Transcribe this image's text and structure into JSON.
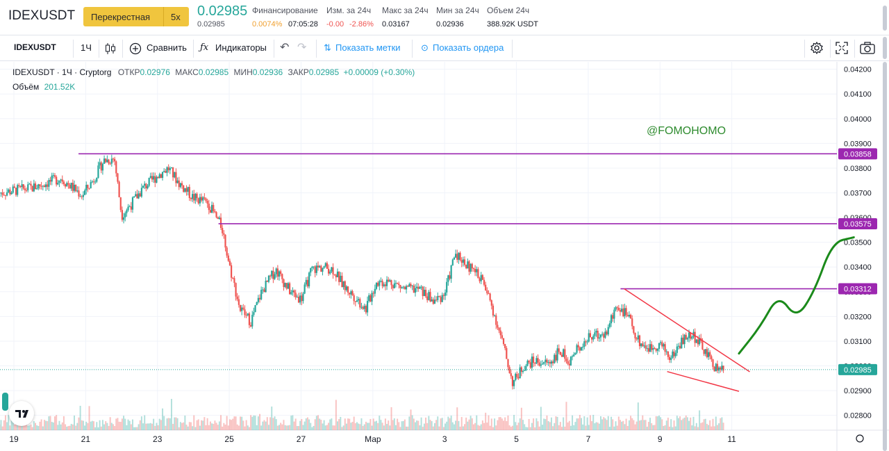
{
  "ticker": {
    "symbol": "IDEXUSDT",
    "margin_mode": "Перекрестная",
    "leverage": "5x",
    "last_price": "0.02985",
    "last_price_sub": "0.02985",
    "stats": [
      {
        "label": "Финансирование",
        "values": [
          "0.0074%",
          "07:05:28"
        ]
      },
      {
        "label": "Изм. за 24ч",
        "values": [
          "-0.00",
          "-2.86%"
        ]
      },
      {
        "label": "Макс за 24ч",
        "values": [
          "0.03167"
        ]
      },
      {
        "label": "Мин за 24ч",
        "values": [
          "0.02936"
        ]
      },
      {
        "label": "Объем 24ч",
        "values": [
          "388.92K USDT"
        ]
      }
    ]
  },
  "toolbar": {
    "symbol": "IDEXUSDT",
    "interval": "1Ч",
    "compare": "Сравнить",
    "indicators": "Индикаторы",
    "show_marks": "Показать метки",
    "show_orders": "Показать ордера",
    "icons": [
      "candles-icon",
      "plus-circle-icon",
      "fx-icon",
      "undo-icon",
      "redo-icon",
      "marks-icon",
      "orders-icon",
      "settings-icon",
      "fullscreen-icon",
      "camera-icon"
    ]
  },
  "legend": {
    "title": "IDEXUSDT · 1Ч · Cryptorg",
    "open_label": "ОТКР",
    "open": "0.02976",
    "high_label": "МАКС",
    "high": "0.02985",
    "low_label": "МИН",
    "low": "0.02936",
    "close_label": "ЗАКР",
    "close": "0.02985",
    "change": "+0.00009 (+0.30%)",
    "volume_label": "Объём",
    "volume": "201.52K"
  },
  "watermark": "@FOMOHOMO",
  "colors": {
    "up": "#26a69a",
    "down": "#ef5350",
    "level": "#9c27b0",
    "trend": "#f23645",
    "forecast": "#1b8a1b"
  },
  "chart_data": {
    "type": "candlestick",
    "title": "IDEXUSDT · 1Ч · Cryptorg",
    "xlabel": "",
    "ylabel": "",
    "ylim": [
      0.0274,
      0.0423
    ],
    "grid": true,
    "x_ticks": [
      "19",
      "21",
      "23",
      "25",
      "27",
      "Мар",
      "3",
      "5",
      "7",
      "9",
      "11"
    ],
    "y_ticks": [
      "0.04200",
      "0.04100",
      "0.04000",
      "0.03900",
      "0.03800",
      "0.03700",
      "0.03600",
      "0.03500",
      "0.03400",
      "0.03300",
      "0.03200",
      "0.03100",
      "0.03000",
      "0.02900",
      "0.02800"
    ],
    "current_price": "0.02985",
    "levels": [
      {
        "price": 0.03858,
        "label": "0.03858",
        "from_day": 20.8
      },
      {
        "price": 0.03575,
        "label": "0.03575",
        "from_day": 24.7
      },
      {
        "price": 0.03312,
        "label": "0.03312",
        "from_day": 35.9
      }
    ],
    "trendlines": [
      {
        "from": [
          36.0,
          0.03312
        ],
        "to": [
          39.5,
          0.02976
        ]
      },
      {
        "from": [
          37.2,
          0.02977
        ],
        "to": [
          39.2,
          0.02897
        ]
      }
    ],
    "forecast_path": [
      [
        39.2,
        0.0305
      ],
      [
        39.8,
        0.0316
      ],
      [
        40.3,
        0.0329
      ],
      [
        40.8,
        0.0319
      ],
      [
        41.3,
        0.033
      ],
      [
        41.8,
        0.035
      ],
      [
        42.4,
        0.0352
      ]
    ],
    "series": [
      {
        "date": 18.6,
        "close": 0.037
      },
      {
        "date": 19.5,
        "close": 0.0372
      },
      {
        "date": 20.3,
        "close": 0.0376
      },
      {
        "date": 20.9,
        "close": 0.0369
      },
      {
        "date": 21.2,
        "close": 0.0375
      },
      {
        "date": 21.5,
        "close": 0.0383
      },
      {
        "date": 21.8,
        "close": 0.0384
      },
      {
        "date": 22.0,
        "close": 0.0361
      },
      {
        "date": 22.3,
        "close": 0.0366
      },
      {
        "date": 22.6,
        "close": 0.0372
      },
      {
        "date": 23.0,
        "close": 0.0377
      },
      {
        "date": 23.3,
        "close": 0.038
      },
      {
        "date": 23.6,
        "close": 0.0374
      },
      {
        "date": 24.0,
        "close": 0.0368
      },
      {
        "date": 24.4,
        "close": 0.0366
      },
      {
        "date": 24.8,
        "close": 0.0356
      },
      {
        "date": 25.0,
        "close": 0.0341
      },
      {
        "date": 25.3,
        "close": 0.0323
      },
      {
        "date": 25.6,
        "close": 0.0318
      },
      {
        "date": 25.9,
        "close": 0.033
      },
      {
        "date": 26.3,
        "close": 0.0339
      },
      {
        "date": 26.7,
        "close": 0.033
      },
      {
        "date": 27.0,
        "close": 0.0327
      },
      {
        "date": 27.3,
        "close": 0.0339
      },
      {
        "date": 27.6,
        "close": 0.034
      },
      {
        "date": 27.9,
        "close": 0.0339
      },
      {
        "date": 28.2,
        "close": 0.0332
      },
      {
        "date": 28.5,
        "close": 0.0328
      },
      {
        "date": 28.8,
        "close": 0.0323
      },
      {
        "date": 29.1,
        "close": 0.0334
      },
      {
        "date": 29.5,
        "close": 0.0334
      },
      {
        "date": 29.9,
        "close": 0.0331
      },
      {
        "date": 30.3,
        "close": 0.0331
      },
      {
        "date": 30.7,
        "close": 0.0326
      },
      {
        "date": 31.0,
        "close": 0.0329
      },
      {
        "date": 31.3,
        "close": 0.0346
      },
      {
        "date": 31.6,
        "close": 0.0341
      },
      {
        "date": 32.0,
        "close": 0.0336
      },
      {
        "date": 32.3,
        "close": 0.0325
      },
      {
        "date": 32.6,
        "close": 0.031
      },
      {
        "date": 32.9,
        "close": 0.0293
      },
      {
        "date": 33.2,
        "close": 0.03
      },
      {
        "date": 33.5,
        "close": 0.0302
      },
      {
        "date": 33.9,
        "close": 0.0301
      },
      {
        "date": 34.2,
        "close": 0.0306
      },
      {
        "date": 34.5,
        "close": 0.0302
      },
      {
        "date": 34.8,
        "close": 0.0309
      },
      {
        "date": 35.1,
        "close": 0.0312
      },
      {
        "date": 35.5,
        "close": 0.0313
      },
      {
        "date": 35.8,
        "close": 0.0325
      },
      {
        "date": 36.1,
        "close": 0.032
      },
      {
        "date": 36.4,
        "close": 0.031
      },
      {
        "date": 36.7,
        "close": 0.0307
      },
      {
        "date": 37.0,
        "close": 0.0309
      },
      {
        "date": 37.3,
        "close": 0.0303
      },
      {
        "date": 37.6,
        "close": 0.031
      },
      {
        "date": 37.9,
        "close": 0.0313
      },
      {
        "date": 38.2,
        "close": 0.0307
      },
      {
        "date": 38.5,
        "close": 0.03
      },
      {
        "date": 38.8,
        "close": 0.0298
      }
    ]
  }
}
